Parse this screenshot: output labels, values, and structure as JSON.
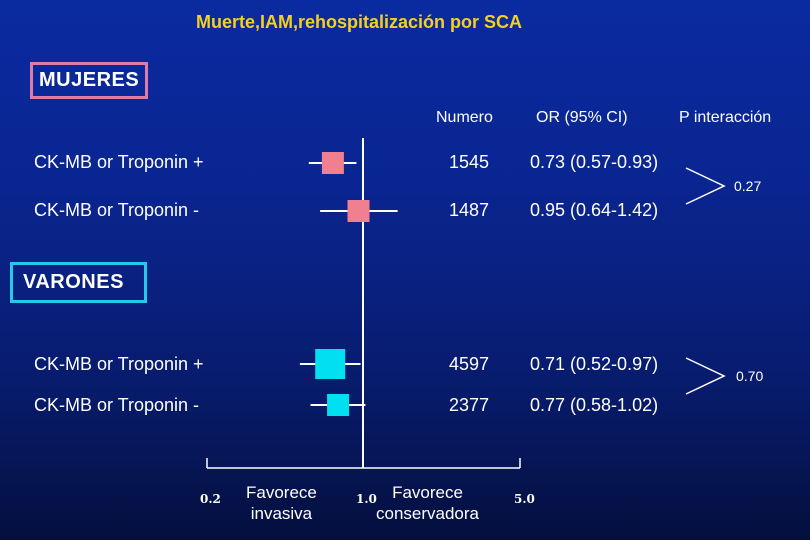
{
  "title": "Muerte,IAM,rehospitalización por SCA",
  "headers": {
    "numero": "Numero",
    "or": "OR (95% CI)",
    "p": "P interacción"
  },
  "groups": [
    {
      "label": "MUJERES",
      "color": "#f08090",
      "p_interaction": "0.27"
    },
    {
      "label": "VARONES",
      "color": "#00e0f0",
      "p_interaction": "0.70"
    }
  ],
  "favor_left": "Favorece\ninvasiva",
  "favor_right": "Favorece\nconservadora",
  "chart_data": {
    "type": "forest",
    "title": "Muerte,IAM,rehospitalización por SCA",
    "x_scale": "log",
    "xlim": [
      0.2,
      5.0
    ],
    "x_ticks": [
      {
        "value": 0.2,
        "label": "0.2"
      },
      {
        "value": 1.0,
        "label": "1.0"
      },
      {
        "value": 5.0,
        "label": "5.0"
      }
    ],
    "rows": [
      {
        "group": "MUJERES",
        "label": "CK-MB or Troponin +",
        "n": "1545",
        "or_text": "0.73 (0.57-0.93)",
        "or": 0.73,
        "lo": 0.57,
        "hi": 0.93
      },
      {
        "group": "MUJERES",
        "label": "CK-MB or Troponin -",
        "n": "1487",
        "or_text": "0.95 (0.64-1.42)",
        "or": 0.95,
        "lo": 0.64,
        "hi": 1.42
      },
      {
        "group": "VARONES",
        "label": "CK-MB or Troponin +",
        "n": "4597",
        "or_text": "0.71 (0.52-0.97)",
        "or": 0.71,
        "lo": 0.52,
        "hi": 0.97
      },
      {
        "group": "VARONES",
        "label": "CK-MB or Troponin -",
        "n": "2377",
        "or_text": "0.77 (0.58-1.02)",
        "or": 0.77,
        "lo": 0.58,
        "hi": 1.02
      }
    ]
  }
}
